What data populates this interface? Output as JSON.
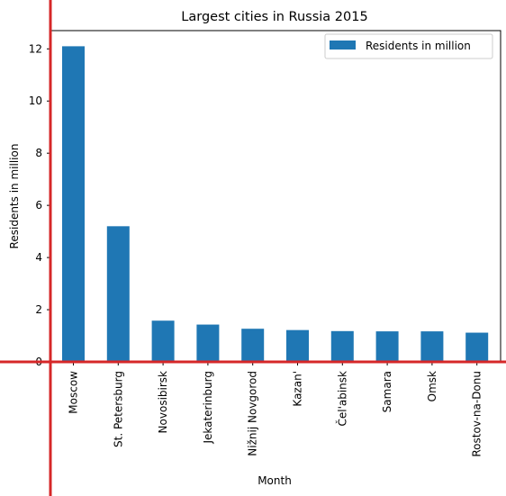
{
  "chart_data": {
    "type": "bar",
    "title": "Largest cities in Russia 2015",
    "xlabel": "Month",
    "ylabel": "Residents in million",
    "categories": [
      "Moscow",
      "St. Petersburg",
      "Novosibirsk",
      "Jekaterinburg",
      "Nižnij Novgorod",
      "Kazan'",
      "Čel'abinsk",
      "Samara",
      "Omsk",
      "Rostov-na-Donu"
    ],
    "series": [
      {
        "name": "Residents in million",
        "values": [
          12.1,
          5.2,
          1.58,
          1.43,
          1.27,
          1.22,
          1.18,
          1.17,
          1.17,
          1.12
        ],
        "color": "#1f77b4"
      }
    ],
    "ylim": [
      0,
      12.7
    ],
    "yticks": [
      0,
      2,
      4,
      6,
      8,
      10,
      12
    ],
    "grid": false,
    "legend_position": "top-right",
    "overlay_line_color": "#d62728"
  }
}
